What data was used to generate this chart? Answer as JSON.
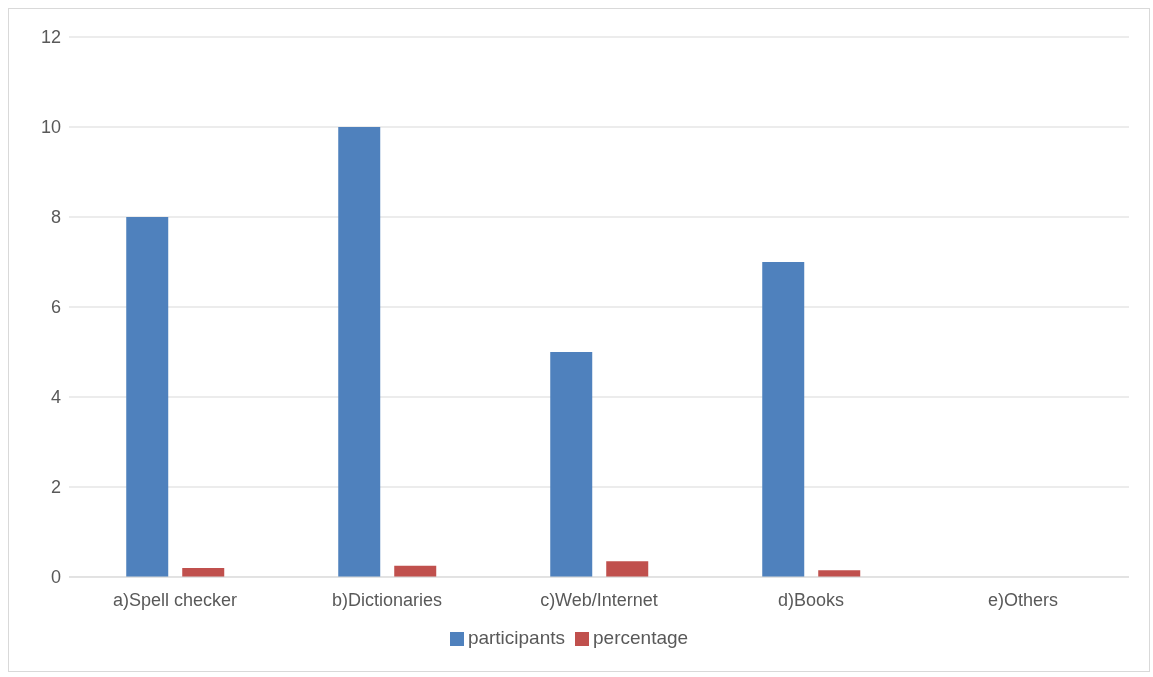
{
  "chart_data": {
    "type": "bar",
    "categories": [
      "a)Spell checker",
      "b)Dictionaries",
      "c)Web/Internet",
      "d)Books",
      "e)Others"
    ],
    "series": [
      {
        "name": "participants",
        "color": "#4f81bd",
        "values": [
          8,
          10,
          5,
          7,
          0
        ]
      },
      {
        "name": "percentage",
        "color": "#c0504d",
        "values": [
          0.2,
          0.25,
          0.35,
          0.15,
          0
        ]
      }
    ],
    "ylim": [
      0,
      12
    ],
    "yticks": [
      0,
      2,
      4,
      6,
      8,
      10,
      12
    ],
    "grid": "y",
    "legend": "bottom"
  }
}
